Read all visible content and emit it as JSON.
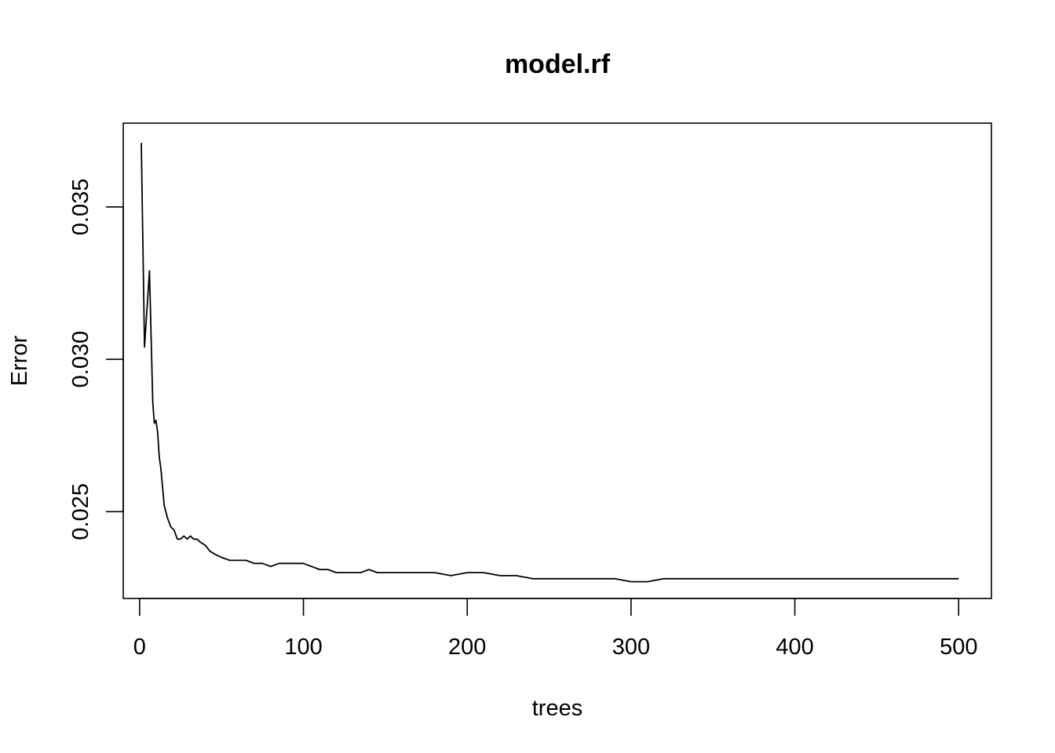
{
  "chart_data": {
    "type": "line",
    "title": "model.rf",
    "xlabel": "trees",
    "ylabel": "Error",
    "xlim": [
      -10,
      520
    ],
    "ylim": [
      0.02215,
      0.03775
    ],
    "x_ticks": [
      0,
      100,
      200,
      300,
      400,
      500
    ],
    "x_tick_labels": [
      "0",
      "100",
      "200",
      "300",
      "400",
      "500"
    ],
    "y_ticks": [
      0.025,
      0.03,
      0.035
    ],
    "y_tick_labels": [
      "0.025",
      "0.030",
      "0.035"
    ],
    "grid": false,
    "legend": "none",
    "series": [
      {
        "color": "#000000",
        "x": [
          1,
          3,
          6,
          8,
          9,
          10,
          11,
          12,
          13,
          14,
          15,
          17,
          19,
          21,
          23,
          25,
          27,
          29,
          31,
          33,
          35,
          37,
          40,
          43,
          46,
          50,
          55,
          60,
          65,
          70,
          75,
          80,
          85,
          90,
          95,
          100,
          105,
          110,
          115,
          120,
          125,
          130,
          135,
          140,
          145,
          150,
          160,
          170,
          180,
          190,
          200,
          210,
          220,
          230,
          240,
          250,
          260,
          270,
          280,
          290,
          300,
          310,
          320,
          330,
          340,
          350,
          360,
          370,
          380,
          390,
          400,
          410,
          420,
          430,
          440,
          450,
          460,
          470,
          480,
          490,
          500
        ],
        "y": [
          0.0371,
          0.0304,
          0.0329,
          0.0286,
          0.0279,
          0.028,
          0.0276,
          0.0268,
          0.0264,
          0.0258,
          0.0252,
          0.0248,
          0.0245,
          0.0244,
          0.0241,
          0.0241,
          0.0242,
          0.0241,
          0.0242,
          0.0241,
          0.0241,
          0.024,
          0.0239,
          0.0237,
          0.0236,
          0.0235,
          0.0234,
          0.0234,
          0.0234,
          0.0233,
          0.0233,
          0.0232,
          0.0233,
          0.0233,
          0.0233,
          0.0233,
          0.0232,
          0.0231,
          0.0231,
          0.023,
          0.023,
          0.023,
          0.023,
          0.0231,
          0.023,
          0.023,
          0.023,
          0.023,
          0.023,
          0.0229,
          0.023,
          0.023,
          0.0229,
          0.0229,
          0.0228,
          0.0228,
          0.0228,
          0.0228,
          0.0228,
          0.0228,
          0.0227,
          0.0227,
          0.0228,
          0.0228,
          0.0228,
          0.0228,
          0.0228,
          0.0228,
          0.0228,
          0.0228,
          0.0228,
          0.0228,
          0.0228,
          0.0228,
          0.0228,
          0.0228,
          0.0228,
          0.0228,
          0.0228,
          0.0228,
          0.0228
        ]
      }
    ]
  }
}
